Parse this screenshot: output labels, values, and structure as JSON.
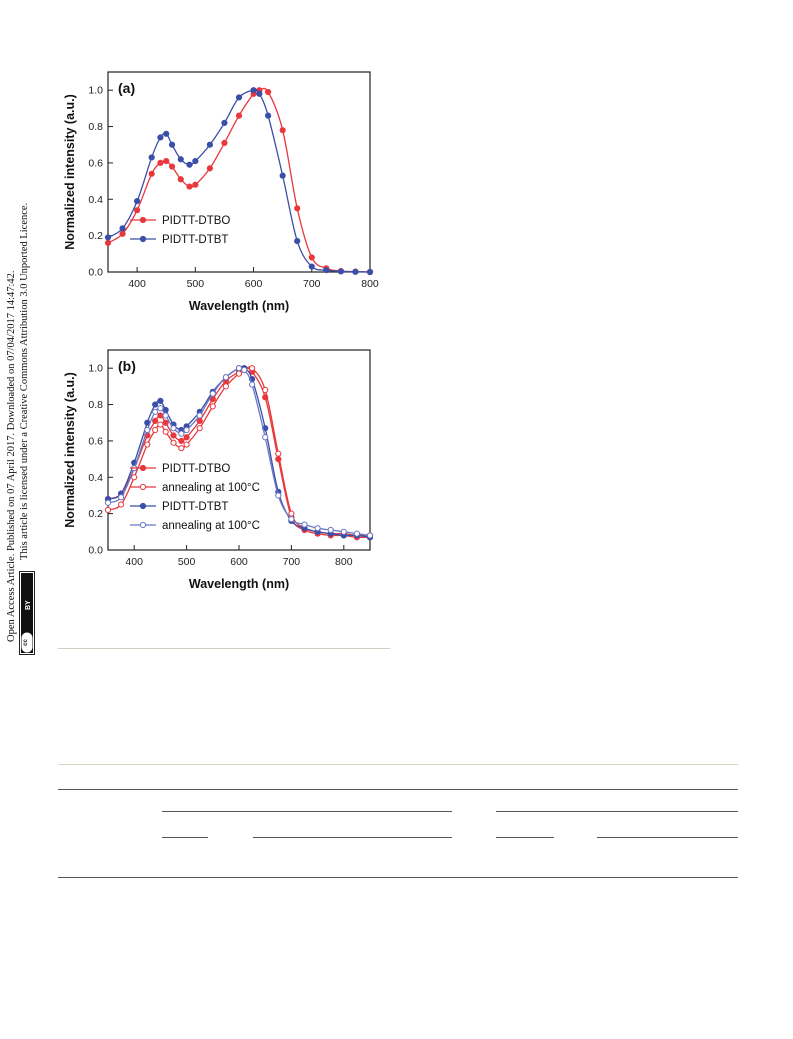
{
  "sidebar": {
    "line1": "Open Access Article. Published on 07 April 2017. Downloaded on 07/04/2017 14:47:42.",
    "line2": "This article is licensed under a Creative Commons Attribution 3.0 Unported Licence.",
    "badge": {
      "cc": "cc",
      "by": "BY"
    }
  },
  "chart_data": [
    {
      "type": "line",
      "panel_label": "(a)",
      "xlabel": "Wavelength (nm)",
      "ylabel": "Normalized intensity (a.u.)",
      "xlim": [
        350,
        800
      ],
      "ylim": [
        0.0,
        1.1
      ],
      "xticks": [
        "400",
        "500",
        "600",
        "700",
        "800"
      ],
      "yticks": [
        "0.0",
        "0.2",
        "0.4",
        "0.6",
        "0.8",
        "1.0"
      ],
      "legend_position": "lower-left",
      "x": [
        350,
        375,
        400,
        425,
        440,
        450,
        460,
        475,
        490,
        500,
        525,
        550,
        575,
        600,
        610,
        625,
        650,
        675,
        700,
        725,
        750,
        775,
        800
      ],
      "series": [
        {
          "name": "PIDTT-DTBO",
          "color": "#e8383d",
          "marker": "filled",
          "values": [
            0.16,
            0.21,
            0.34,
            0.54,
            0.6,
            0.61,
            0.58,
            0.51,
            0.47,
            0.48,
            0.57,
            0.71,
            0.86,
            0.98,
            1.0,
            0.99,
            0.78,
            0.35,
            0.08,
            0.02,
            0.005,
            0.002,
            0.0
          ]
        },
        {
          "name": "PIDTT-DTBT",
          "color": "#3a4fa8",
          "marker": "filled",
          "values": [
            0.19,
            0.24,
            0.39,
            0.63,
            0.74,
            0.76,
            0.7,
            0.62,
            0.59,
            0.61,
            0.7,
            0.82,
            0.96,
            1.0,
            0.98,
            0.86,
            0.53,
            0.17,
            0.03,
            0.01,
            0.003,
            0.001,
            0.0
          ]
        }
      ]
    },
    {
      "type": "line",
      "panel_label": "(b)",
      "xlabel": "Wavelength (nm)",
      "ylabel": "Normalized intensity (a.u.)",
      "xlim": [
        350,
        850
      ],
      "ylim": [
        0.0,
        1.1
      ],
      "xticks": [
        "400",
        "500",
        "600",
        "700",
        "800"
      ],
      "yticks": [
        "0.0",
        "0.2",
        "0.4",
        "0.6",
        "0.8",
        "1.0"
      ],
      "legend_position": "lower-left",
      "x": [
        350,
        375,
        400,
        425,
        440,
        450,
        460,
        475,
        490,
        500,
        525,
        550,
        575,
        600,
        610,
        625,
        650,
        675,
        700,
        725,
        750,
        775,
        800,
        825,
        850
      ],
      "series": [
        {
          "name": "PIDTT-DTBO",
          "color": "#e8383d",
          "marker": "filled",
          "values": [
            0.28,
            0.31,
            0.45,
            0.63,
            0.71,
            0.74,
            0.7,
            0.63,
            0.6,
            0.62,
            0.71,
            0.83,
            0.93,
            0.98,
            1.0,
            0.98,
            0.84,
            0.5,
            0.18,
            0.11,
            0.09,
            0.08,
            0.08,
            0.07,
            0.07
          ]
        },
        {
          "name": "annealing at 100°C",
          "color": "#e8383d",
          "marker": "open",
          "values": [
            0.22,
            0.25,
            0.4,
            0.58,
            0.66,
            0.69,
            0.65,
            0.59,
            0.56,
            0.58,
            0.67,
            0.79,
            0.9,
            0.97,
            0.99,
            1.0,
            0.88,
            0.53,
            0.2,
            0.12,
            0.1,
            0.09,
            0.09,
            0.08,
            0.08
          ]
        },
        {
          "name": "PIDTT-DTBT",
          "color": "#3a4fa8",
          "marker": "filled",
          "values": [
            0.28,
            0.31,
            0.48,
            0.7,
            0.8,
            0.82,
            0.77,
            0.69,
            0.66,
            0.68,
            0.76,
            0.87,
            0.95,
            1.0,
            1.0,
            0.94,
            0.67,
            0.32,
            0.16,
            0.12,
            0.1,
            0.09,
            0.08,
            0.08,
            0.07
          ]
        },
        {
          "name": "annealing at 100°C",
          "color": "#6b78c5",
          "marker": "open",
          "values": [
            0.26,
            0.29,
            0.45,
            0.66,
            0.76,
            0.78,
            0.74,
            0.67,
            0.64,
            0.66,
            0.74,
            0.86,
            0.95,
            1.0,
            0.99,
            0.91,
            0.62,
            0.3,
            0.17,
            0.14,
            0.12,
            0.11,
            0.1,
            0.09,
            0.08
          ]
        }
      ]
    }
  ]
}
